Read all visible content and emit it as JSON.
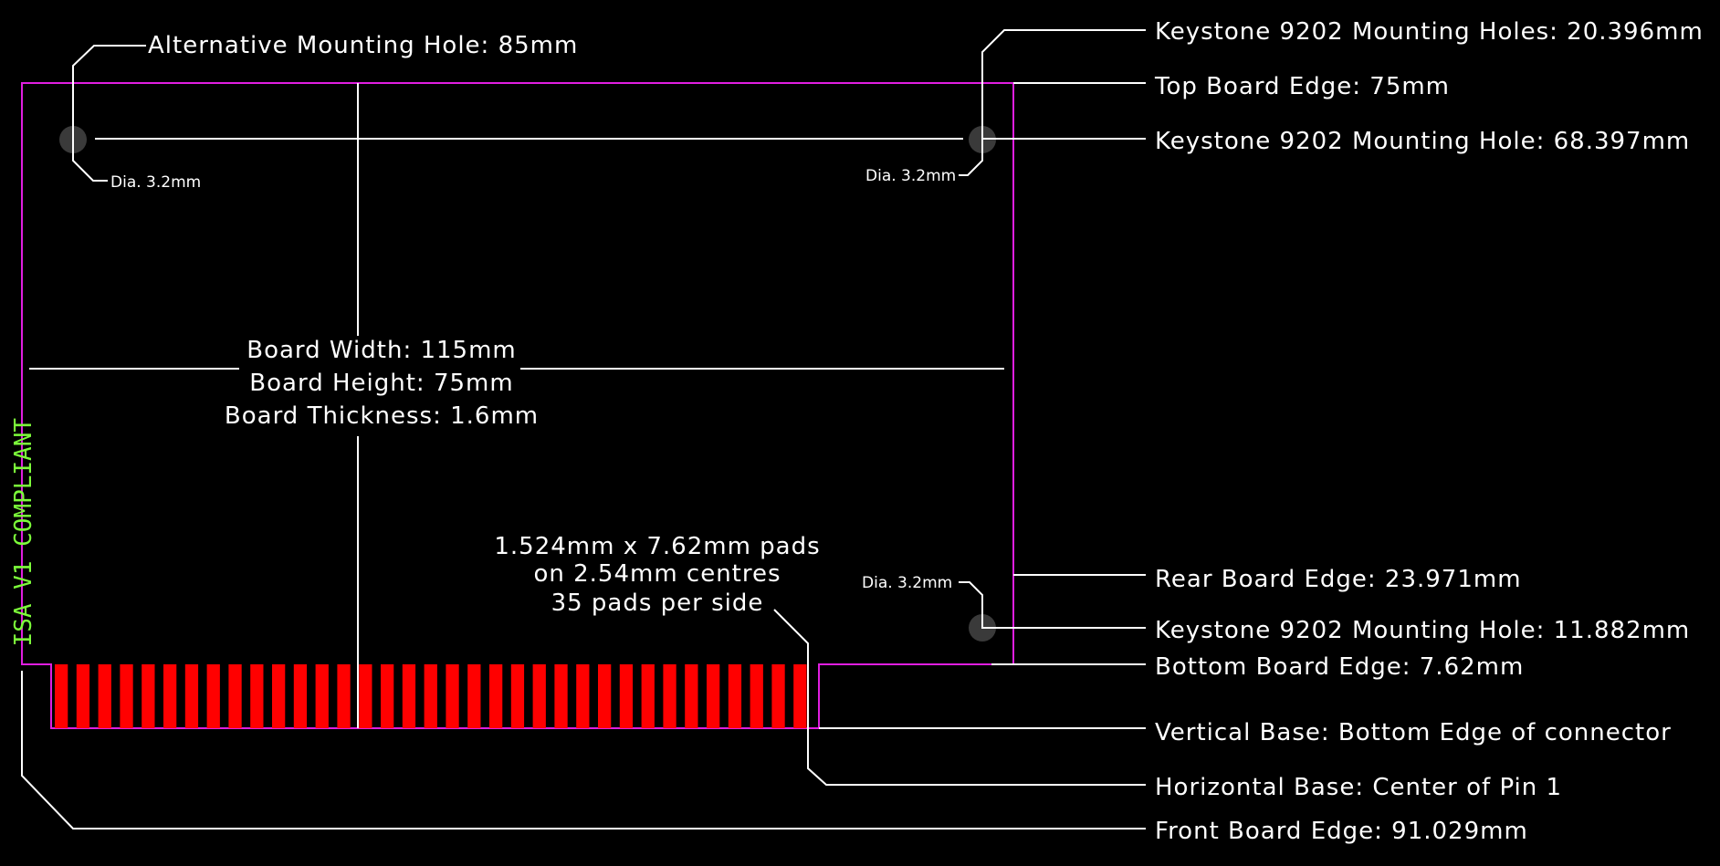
{
  "colors": {
    "background": "#000000",
    "board_outline": "#e01ee0",
    "pad": "#ff0000",
    "leader": "#ffffff",
    "hole": "#3a3a3a",
    "compliant_text": "#7cfc3a"
  },
  "pads": {
    "count": 35
  },
  "labels": {
    "alt_mount_hole": "Alternative Mounting Hole: 85mm",
    "keystone_holes": "Keystone 9202 Mounting Holes: 20.396mm",
    "top_edge": "Top Board Edge: 75mm",
    "keystone_hole_68": "Keystone 9202 Mounting Hole: 68.397mm",
    "rear_edge": "Rear Board Edge: 23.971mm",
    "keystone_hole_11": "Keystone 9202 Mounting Hole: 11.882mm",
    "bottom_edge": "Bottom Board Edge: 7.62mm",
    "vertical_base": "Vertical Base: Bottom Edge of connector",
    "horizontal_base": "Horizontal Base: Center of Pin 1",
    "front_edge": "Front Board Edge: 91.029mm"
  },
  "dia": {
    "left": "Dia. 3.2mm",
    "right_top": "Dia. 3.2mm",
    "right_bottom": "Dia. 3.2mm"
  },
  "board": {
    "width": "Board Width: 115mm",
    "height": "Board Height: 75mm",
    "thickness": "Board Thickness: 1.6mm"
  },
  "pad_note": {
    "line1": "1.524mm x 7.62mm pads",
    "line2": "on 2.54mm centres",
    "line3": "35 pads per side"
  },
  "compliant": "ISA V1 COMPLIANT"
}
